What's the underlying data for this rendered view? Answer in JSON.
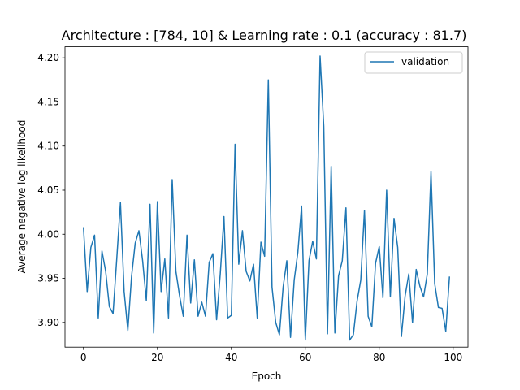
{
  "chart_data": {
    "type": "line",
    "title": "Architecture : [784, 10]  & Learning rate : 0.1 (accuracy : 81.7)",
    "xlabel": "Epoch",
    "ylabel": "Average negative log likelihood",
    "xlim": [
      -5,
      104
    ],
    "ylim": [
      3.872,
      4.2125
    ],
    "xticks": [
      0,
      20,
      40,
      60,
      80,
      100
    ],
    "yticks": [
      3.9,
      3.95,
      4.0,
      4.05,
      4.1,
      4.15,
      4.2
    ],
    "xtick_labels": [
      "0",
      "20",
      "40",
      "60",
      "80",
      "100"
    ],
    "ytick_labels": [
      "3.90",
      "3.95",
      "4.00",
      "4.05",
      "4.10",
      "4.15",
      "4.20"
    ],
    "grid": false,
    "legend": "top-right",
    "series": [
      {
        "name": "validation",
        "color": "#1f77b4",
        "x": [
          0,
          1,
          2,
          3,
          4,
          5,
          6,
          7,
          8,
          9,
          10,
          11,
          12,
          13,
          14,
          15,
          16,
          17,
          18,
          19,
          20,
          21,
          22,
          23,
          24,
          25,
          26,
          27,
          28,
          29,
          30,
          31,
          32,
          33,
          34,
          35,
          36,
          37,
          38,
          39,
          40,
          41,
          42,
          43,
          44,
          45,
          46,
          47,
          48,
          49,
          50,
          51,
          52,
          53,
          54,
          55,
          56,
          57,
          58,
          59,
          60,
          61,
          62,
          63,
          64,
          65,
          66,
          67,
          68,
          69,
          70,
          71,
          72,
          73,
          74,
          75,
          76,
          77,
          78,
          79,
          80,
          81,
          82,
          83,
          84,
          85,
          86,
          87,
          88,
          89,
          90,
          91,
          92,
          93,
          94,
          95,
          96,
          97,
          98,
          99
        ],
        "values": [
          4.008,
          3.935,
          3.985,
          3.999,
          3.905,
          3.981,
          3.958,
          3.918,
          3.91,
          3.972,
          4.036,
          3.935,
          3.891,
          3.952,
          3.99,
          4.004,
          3.97,
          3.925,
          4.034,
          3.888,
          4.037,
          3.935,
          3.972,
          3.905,
          4.062,
          3.958,
          3.93,
          3.907,
          3.999,
          3.922,
          3.971,
          3.907,
          3.923,
          3.907,
          3.968,
          3.978,
          3.903,
          3.955,
          4.02,
          3.905,
          3.908,
          4.102,
          3.966,
          4.004,
          3.958,
          3.947,
          3.966,
          3.905,
          3.991,
          3.975,
          4.175,
          3.94,
          3.9,
          3.886,
          3.94,
          3.97,
          3.883,
          3.948,
          3.98,
          4.032,
          3.88,
          3.97,
          3.992,
          3.972,
          4.202,
          4.122,
          3.887,
          4.077,
          3.888,
          3.953,
          3.97,
          4.03,
          3.88,
          3.886,
          3.924,
          3.948,
          4.027,
          3.907,
          3.895,
          3.967,
          3.986,
          3.928,
          4.05,
          3.929,
          4.018,
          3.985,
          3.884,
          3.93,
          3.955,
          3.9,
          3.96,
          3.941,
          3.929,
          3.955,
          4.071,
          3.944,
          3.917,
          3.916,
          3.89,
          3.952
        ]
      }
    ]
  }
}
